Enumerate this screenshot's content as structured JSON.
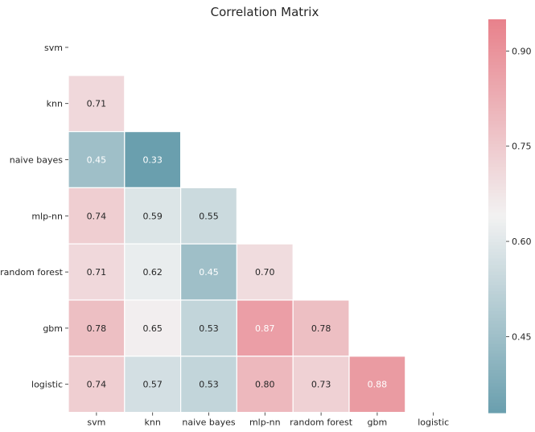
{
  "chart_data": {
    "type": "heatmap",
    "title": "Correlation Matrix",
    "labels": [
      "svm",
      "knn",
      "naive bayes",
      "mlp-nn",
      "random forest",
      "gbm",
      "logistic"
    ],
    "mask": "upper-triangle-including-diagonal",
    "values": [
      [
        null,
        null,
        null,
        null,
        null,
        null,
        null
      ],
      [
        0.71,
        null,
        null,
        null,
        null,
        null,
        null
      ],
      [
        0.45,
        0.33,
        null,
        null,
        null,
        null,
        null
      ],
      [
        0.74,
        0.59,
        0.55,
        null,
        null,
        null,
        null
      ],
      [
        0.71,
        0.62,
        0.45,
        0.7,
        null,
        null,
        null
      ],
      [
        0.78,
        0.65,
        0.53,
        0.87,
        0.78,
        null,
        null
      ],
      [
        0.74,
        0.57,
        0.53,
        0.8,
        0.73,
        0.88,
        null
      ]
    ],
    "annotation_format": "0.00",
    "colorbar": {
      "vmin": 0.33,
      "vmax": 0.95,
      "ticks": [
        0.45,
        0.6,
        0.75,
        0.9
      ],
      "tick_labels": [
        "0.45",
        "0.60",
        "0.75",
        "0.90"
      ],
      "location": "right"
    },
    "colormap": {
      "low": "#6a9fae",
      "mid": "#f2f2f2",
      "high": "#e8818b"
    },
    "cell_border_color": "#ffffff",
    "text_color_dark": "#262626",
    "text_color_light": "#ffffff"
  }
}
